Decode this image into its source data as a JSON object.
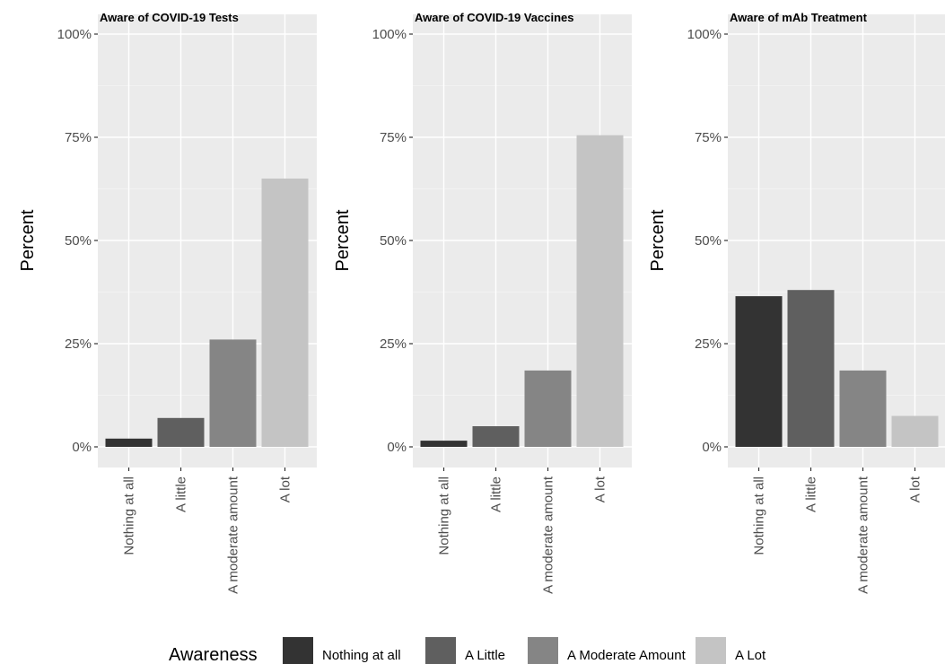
{
  "chart_data": [
    {
      "type": "bar",
      "title": "Aware of COVID-19 Tests",
      "ylabel": "Percent",
      "xlabel": "",
      "ylim": [
        0,
        100
      ],
      "yticks": [
        "0%",
        "25%",
        "50%",
        "75%",
        "100%"
      ],
      "categories": [
        "Nothing at all",
        "A little",
        "A moderate amount",
        "A lot"
      ],
      "values": [
        2,
        7,
        26,
        65
      ],
      "colors": [
        "#333333",
        "#5f5f5f",
        "#858585",
        "#c4c4c4"
      ]
    },
    {
      "type": "bar",
      "title": "Aware of COVID-19 Vaccines",
      "ylabel": "Percent",
      "xlabel": "",
      "ylim": [
        0,
        100
      ],
      "yticks": [
        "0%",
        "25%",
        "50%",
        "75%",
        "100%"
      ],
      "categories": [
        "Nothing at all",
        "A little",
        "A moderate amount",
        "A lot"
      ],
      "values": [
        1.5,
        5,
        18.5,
        75.5
      ],
      "colors": [
        "#333333",
        "#5f5f5f",
        "#858585",
        "#c4c4c4"
      ]
    },
    {
      "type": "bar",
      "title": "Aware of mAb Treatment",
      "ylabel": "Percent",
      "xlabel": "",
      "ylim": [
        0,
        100
      ],
      "yticks": [
        "0%",
        "25%",
        "50%",
        "75%",
        "100%"
      ],
      "categories": [
        "Nothing at all",
        "A little",
        "A moderate amount",
        "A lot"
      ],
      "values": [
        36.5,
        38,
        18.5,
        7.5
      ],
      "colors": [
        "#333333",
        "#5f5f5f",
        "#858585",
        "#c4c4c4"
      ]
    }
  ],
  "legend": {
    "title": "Awareness",
    "placement": "bottom",
    "items": [
      {
        "label": "Nothing at all",
        "color": "#333333"
      },
      {
        "label": "A Little",
        "color": "#5f5f5f"
      },
      {
        "label": "A Moderate Amount",
        "color": "#858585"
      },
      {
        "label": "A Lot",
        "color": "#c4c4c4"
      }
    ]
  }
}
